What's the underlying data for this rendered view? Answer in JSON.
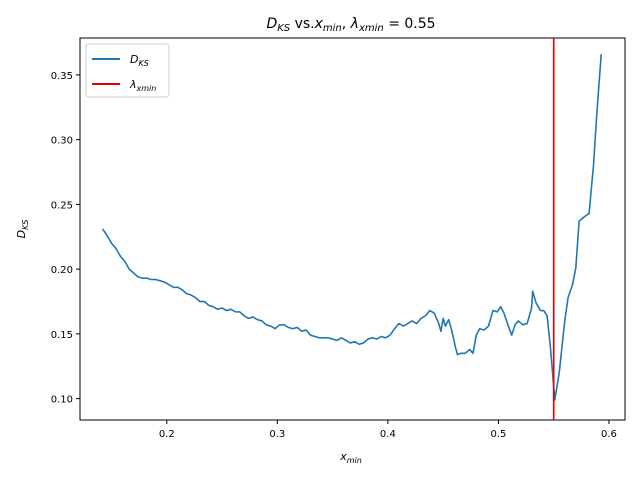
{
  "chart_data": {
    "type": "line",
    "title": {
      "a": "D",
      "a_sub": "KS",
      "b": " vs.",
      "c": "x",
      "c_sub": "min",
      "d": ", ",
      "e": "λ",
      "e_sub": "xmin",
      "f": " = 0.55"
    },
    "xlabel": {
      "main": "x",
      "sub": "min"
    },
    "ylabel": {
      "main": "D",
      "sub": "KS"
    },
    "xlim": [
      0.1215,
      0.6145
    ],
    "ylim": [
      0.0835,
      0.3785
    ],
    "xticks": [
      0.2,
      0.3,
      0.4,
      0.5,
      0.6
    ],
    "xtick_labels": [
      "0.2",
      "0.3",
      "0.4",
      "0.5",
      "0.6"
    ],
    "yticks": [
      0.1,
      0.15,
      0.2,
      0.25,
      0.3,
      0.35
    ],
    "ytick_labels": [
      "0.10",
      "0.15",
      "0.20",
      "0.25",
      "0.30",
      "0.35"
    ],
    "legend_position": "top-left",
    "series": [
      {
        "name": {
          "main": "D",
          "sub": "KS"
        },
        "color": "#1f77b4",
        "points": [
          [
            0.142,
            0.231
          ],
          [
            0.146,
            0.226
          ],
          [
            0.15,
            0.22
          ],
          [
            0.154,
            0.216
          ],
          [
            0.158,
            0.21
          ],
          [
            0.162,
            0.206
          ],
          [
            0.166,
            0.2
          ],
          [
            0.17,
            0.197
          ],
          [
            0.174,
            0.194
          ],
          [
            0.178,
            0.193
          ],
          [
            0.182,
            0.193
          ],
          [
            0.186,
            0.192
          ],
          [
            0.19,
            0.192
          ],
          [
            0.194,
            0.191
          ],
          [
            0.198,
            0.19
          ],
          [
            0.202,
            0.188
          ],
          [
            0.206,
            0.186
          ],
          [
            0.21,
            0.186
          ],
          [
            0.214,
            0.184
          ],
          [
            0.218,
            0.181
          ],
          [
            0.222,
            0.18
          ],
          [
            0.226,
            0.178
          ],
          [
            0.23,
            0.175
          ],
          [
            0.234,
            0.175
          ],
          [
            0.238,
            0.172
          ],
          [
            0.242,
            0.171
          ],
          [
            0.246,
            0.169
          ],
          [
            0.25,
            0.17
          ],
          [
            0.254,
            0.168
          ],
          [
            0.258,
            0.169
          ],
          [
            0.262,
            0.167
          ],
          [
            0.266,
            0.167
          ],
          [
            0.27,
            0.164
          ],
          [
            0.274,
            0.162
          ],
          [
            0.278,
            0.163
          ],
          [
            0.282,
            0.161
          ],
          [
            0.286,
            0.16
          ],
          [
            0.29,
            0.157
          ],
          [
            0.294,
            0.156
          ],
          [
            0.298,
            0.154
          ],
          [
            0.302,
            0.157
          ],
          [
            0.306,
            0.157
          ],
          [
            0.31,
            0.155
          ],
          [
            0.314,
            0.154
          ],
          [
            0.318,
            0.155
          ],
          [
            0.322,
            0.152
          ],
          [
            0.326,
            0.153
          ],
          [
            0.33,
            0.149
          ],
          [
            0.334,
            0.148
          ],
          [
            0.338,
            0.147
          ],
          [
            0.342,
            0.147
          ],
          [
            0.346,
            0.147
          ],
          [
            0.35,
            0.146
          ],
          [
            0.354,
            0.145
          ],
          [
            0.358,
            0.147
          ],
          [
            0.362,
            0.145
          ],
          [
            0.366,
            0.143
          ],
          [
            0.37,
            0.144
          ],
          [
            0.374,
            0.142
          ],
          [
            0.378,
            0.143
          ],
          [
            0.382,
            0.146
          ],
          [
            0.386,
            0.147
          ],
          [
            0.39,
            0.146
          ],
          [
            0.394,
            0.148
          ],
          [
            0.398,
            0.147
          ],
          [
            0.402,
            0.149
          ],
          [
            0.406,
            0.154
          ],
          [
            0.41,
            0.158
          ],
          [
            0.414,
            0.156
          ],
          [
            0.418,
            0.158
          ],
          [
            0.422,
            0.16
          ],
          [
            0.426,
            0.158
          ],
          [
            0.43,
            0.162
          ],
          [
            0.434,
            0.164
          ],
          [
            0.438,
            0.168
          ],
          [
            0.442,
            0.166
          ],
          [
            0.446,
            0.158
          ],
          [
            0.448,
            0.152
          ],
          [
            0.45,
            0.162
          ],
          [
            0.452,
            0.156
          ],
          [
            0.455,
            0.161
          ],
          [
            0.458,
            0.152
          ],
          [
            0.461,
            0.14
          ],
          [
            0.463,
            0.134
          ],
          [
            0.466,
            0.135
          ],
          [
            0.47,
            0.135
          ],
          [
            0.474,
            0.138
          ],
          [
            0.477,
            0.135
          ],
          [
            0.48,
            0.149
          ],
          [
            0.483,
            0.154
          ],
          [
            0.487,
            0.153
          ],
          [
            0.491,
            0.156
          ],
          [
            0.495,
            0.168
          ],
          [
            0.499,
            0.167
          ],
          [
            0.502,
            0.171
          ],
          [
            0.505,
            0.166
          ],
          [
            0.509,
            0.156
          ],
          [
            0.512,
            0.149
          ],
          [
            0.515,
            0.157
          ],
          [
            0.518,
            0.16
          ],
          [
            0.522,
            0.157
          ],
          [
            0.526,
            0.158
          ],
          [
            0.53,
            0.17
          ],
          [
            0.531,
            0.183
          ],
          [
            0.534,
            0.174
          ],
          [
            0.538,
            0.168
          ],
          [
            0.541,
            0.168
          ],
          [
            0.544,
            0.164
          ],
          [
            0.547,
            0.14
          ],
          [
            0.551,
            0.099
          ],
          [
            0.555,
            0.12
          ],
          [
            0.56,
            0.16
          ],
          [
            0.563,
            0.178
          ],
          [
            0.567,
            0.188
          ],
          [
            0.57,
            0.201
          ],
          [
            0.573,
            0.237
          ],
          [
            0.577,
            0.24
          ],
          [
            0.582,
            0.243
          ],
          [
            0.586,
            0.28
          ],
          [
            0.589,
            0.32
          ],
          [
            0.593,
            0.366
          ]
        ]
      }
    ],
    "vline": {
      "name": {
        "main": "λ",
        "sub": "xmin"
      },
      "x": 0.55,
      "color": "#e00000"
    }
  }
}
